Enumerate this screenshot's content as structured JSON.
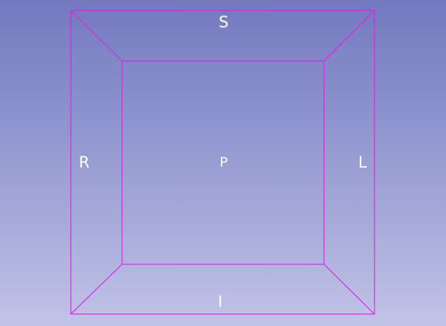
{
  "viewport": {
    "background_top": "#7479c0",
    "background_bottom": "#c1c3e7",
    "box_color": "#e020e0",
    "label_color": "#ffffff"
  },
  "orientation_labels": {
    "superior": "S",
    "inferior": "I",
    "right": "R",
    "left": "L",
    "posterior": "P"
  }
}
